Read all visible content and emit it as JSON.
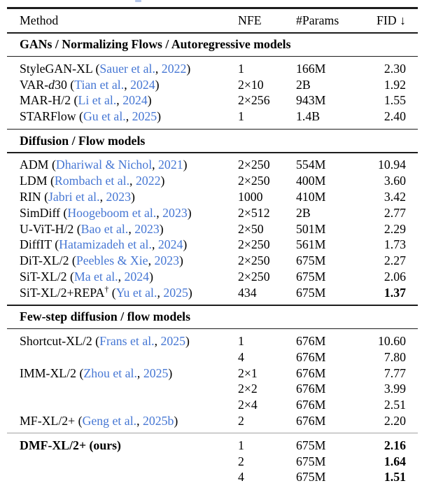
{
  "colors": {
    "citation_blue": "#4677d4",
    "rule_dark": "#1d1d1d",
    "rule_light_gray": "#a3a3a3",
    "cropped_link_fragment": "#b5c7ec"
  },
  "table": {
    "columns": {
      "method": "Method",
      "nfe": "NFE",
      "params": "#Params",
      "fid": "FID ↓"
    },
    "sections": [
      {
        "title": "GANs / Normalizing Flows / Autoregressive models",
        "rows": [
          {
            "method": [
              {
                "t": "StyleGAN-XL ("
              },
              {
                "t": "Sauer et al.",
                "link": true
              },
              {
                "t": ", "
              },
              {
                "t": "2022",
                "link": true
              },
              {
                "t": ")"
              }
            ],
            "nfe": "1",
            "params": "166M",
            "fid": "2.30",
            "fid_bold": false
          },
          {
            "method": [
              {
                "t": "VAR-"
              },
              {
                "t": "d",
                "italic": true
              },
              {
                "t": "30 ("
              },
              {
                "t": "Tian et al.",
                "link": true
              },
              {
                "t": ", "
              },
              {
                "t": "2024",
                "link": true
              },
              {
                "t": ")"
              }
            ],
            "nfe": "2×10",
            "params": "2B",
            "fid": "1.92",
            "fid_bold": false
          },
          {
            "method": [
              {
                "t": "MAR-H/2 ("
              },
              {
                "t": "Li et al.",
                "link": true
              },
              {
                "t": ", "
              },
              {
                "t": "2024",
                "link": true
              },
              {
                "t": ")"
              }
            ],
            "nfe": "2×256",
            "params": "943M",
            "fid": "1.55",
            "fid_bold": false
          },
          {
            "method": [
              {
                "t": "STARFlow ("
              },
              {
                "t": "Gu et al.",
                "link": true
              },
              {
                "t": ", "
              },
              {
                "t": "2025",
                "link": true
              },
              {
                "t": ")"
              }
            ],
            "nfe": "1",
            "params": "1.4B",
            "fid": "2.40",
            "fid_bold": false
          }
        ]
      },
      {
        "title": "Diffusion / Flow models",
        "rows": [
          {
            "method": [
              {
                "t": "ADM ("
              },
              {
                "t": "Dhariwal & Nichol",
                "link": true
              },
              {
                "t": ", "
              },
              {
                "t": "2021",
                "link": true
              },
              {
                "t": ")"
              }
            ],
            "nfe": "2×250",
            "params": "554M",
            "fid": "10.94",
            "fid_bold": false
          },
          {
            "method": [
              {
                "t": "LDM ("
              },
              {
                "t": "Rombach et al.",
                "link": true
              },
              {
                "t": ", "
              },
              {
                "t": "2022",
                "link": true
              },
              {
                "t": ")"
              }
            ],
            "nfe": "2×250",
            "params": "400M",
            "fid": "3.60",
            "fid_bold": false
          },
          {
            "method": [
              {
                "t": "RIN ("
              },
              {
                "t": "Jabri et al.",
                "link": true
              },
              {
                "t": ", "
              },
              {
                "t": "2023",
                "link": true
              },
              {
                "t": ")"
              }
            ],
            "nfe": "1000",
            "params": "410M",
            "fid": "3.42",
            "fid_bold": false
          },
          {
            "method": [
              {
                "t": "SimDiff ("
              },
              {
                "t": "Hoogeboom et al.",
                "link": true
              },
              {
                "t": ", "
              },
              {
                "t": "2023",
                "link": true
              },
              {
                "t": ")"
              }
            ],
            "nfe": "2×512",
            "params": "2B",
            "fid": "2.77",
            "fid_bold": false
          },
          {
            "method": [
              {
                "t": "U-ViT-H/2 ("
              },
              {
                "t": "Bao et al.",
                "link": true
              },
              {
                "t": ", "
              },
              {
                "t": "2023",
                "link": true
              },
              {
                "t": ")"
              }
            ],
            "nfe": "2×50",
            "params": "501M",
            "fid": "2.29",
            "fid_bold": false
          },
          {
            "method": [
              {
                "t": "DiffIT ("
              },
              {
                "t": "Hatamizadeh et al.",
                "link": true
              },
              {
                "t": ", "
              },
              {
                "t": "2024",
                "link": true
              },
              {
                "t": ")"
              }
            ],
            "nfe": "2×250",
            "params": "561M",
            "fid": "1.73",
            "fid_bold": false
          },
          {
            "method": [
              {
                "t": "DiT-XL/2 ("
              },
              {
                "t": "Peebles & Xie",
                "link": true
              },
              {
                "t": ", "
              },
              {
                "t": "2023",
                "link": true
              },
              {
                "t": ")"
              }
            ],
            "nfe": "2×250",
            "params": "675M",
            "fid": "2.27",
            "fid_bold": false
          },
          {
            "method": [
              {
                "t": "SiT-XL/2 ("
              },
              {
                "t": "Ma et al.",
                "link": true
              },
              {
                "t": ", "
              },
              {
                "t": "2024",
                "link": true
              },
              {
                "t": ")"
              }
            ],
            "nfe": "2×250",
            "params": "675M",
            "fid": "2.06",
            "fid_bold": false
          },
          {
            "method": [
              {
                "t": "SiT-XL/2+REPA"
              },
              {
                "t": "†",
                "sup": true
              },
              {
                "t": " ("
              },
              {
                "t": "Yu et al.",
                "link": true
              },
              {
                "t": ", "
              },
              {
                "t": "2025",
                "link": true
              },
              {
                "t": ")"
              }
            ],
            "nfe": "434",
            "params": "675M",
            "fid": "1.37",
            "fid_bold": true
          }
        ]
      },
      {
        "title": "Few-step diffusion / flow models",
        "rows": [
          {
            "method": [
              {
                "t": "Shortcut-XL/2 ("
              },
              {
                "t": "Frans et al.",
                "link": true
              },
              {
                "t": ", "
              },
              {
                "t": "2025",
                "link": true
              },
              {
                "t": ")"
              }
            ],
            "nfe": "1",
            "params": "676M",
            "fid": "10.60",
            "fid_bold": false
          },
          {
            "method": [],
            "nfe": "4",
            "params": "676M",
            "fid": "7.80",
            "fid_bold": false
          },
          {
            "method": [
              {
                "t": "IMM-XL/2 ("
              },
              {
                "t": "Zhou et al.",
                "link": true
              },
              {
                "t": ", "
              },
              {
                "t": "2025",
                "link": true
              },
              {
                "t": ")"
              }
            ],
            "nfe": "2×1",
            "params": "676M",
            "fid": "7.77",
            "fid_bold": false
          },
          {
            "method": [],
            "nfe": "2×2",
            "params": "676M",
            "fid": "3.99",
            "fid_bold": false
          },
          {
            "method": [],
            "nfe": "2×4",
            "params": "676M",
            "fid": "2.51",
            "fid_bold": false
          },
          {
            "method": [
              {
                "t": "MF-XL/2+ ("
              },
              {
                "t": "Geng et al.",
                "link": true
              },
              {
                "t": ", "
              },
              {
                "t": "2025b",
                "link": true
              },
              {
                "t": ")"
              }
            ],
            "nfe": "2",
            "params": "676M",
            "fid": "2.20",
            "fid_bold": false
          }
        ]
      },
      {
        "title": null,
        "rows": [
          {
            "method": [
              {
                "t": "DMF-XL/2+ (ours)",
                "bold": true
              }
            ],
            "nfe": "1",
            "params": "675M",
            "fid": "2.16",
            "fid_bold": true
          },
          {
            "method": [],
            "nfe": "2",
            "params": "675M",
            "fid": "1.64",
            "fid_bold": true
          },
          {
            "method": [],
            "nfe": "4",
            "params": "675M",
            "fid": "1.51",
            "fid_bold": true
          }
        ]
      }
    ]
  }
}
